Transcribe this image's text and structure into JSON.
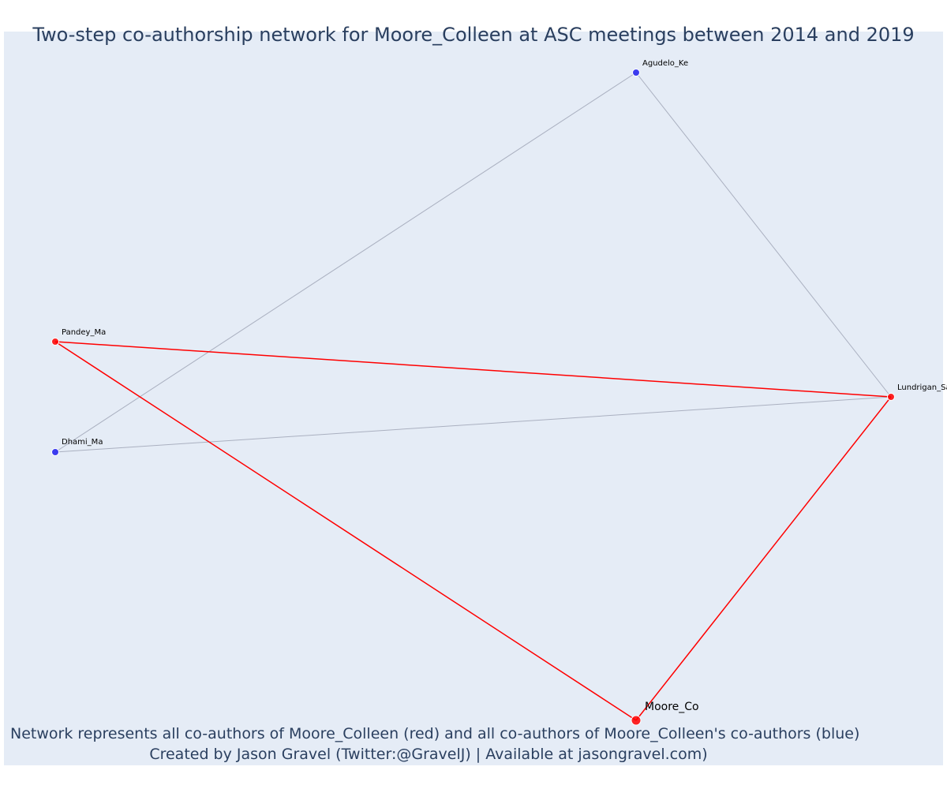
{
  "title": "Two-step co-authorship network for Moore_Colleen at ASC meetings between 2014 and 2019",
  "footnote": {
    "line1": "Network represents all co-authors of Moore_Colleen (red) and all co-authors of Moore_Colleen's co-authors (blue)",
    "line2": "Created by Jason Gravel (Twitter:@GravelJ) | Available at jasongravel.com)"
  },
  "colors": {
    "plot_background": "#e5ecf6",
    "coauthor_red": "#ff0000",
    "second_step_blue": "#3333ee",
    "indirect_edge": "#aab0c0",
    "title_text": "#2a3f5f"
  },
  "nodes": [
    {
      "id": "Moore_Co",
      "label": "Moore_Co",
      "group": "focal"
    },
    {
      "id": "Lundrigan_Sa",
      "label": "Lundrigan_Sa",
      "group": "coauthor"
    },
    {
      "id": "Pandey_Ma",
      "label": "Pandey_Ma",
      "group": "coauthor"
    },
    {
      "id": "Agudelo_Ke",
      "label": "Agudelo_Ke",
      "group": "second_step"
    },
    {
      "id": "Dhami_Ma",
      "label": "Dhami_Ma",
      "group": "second_step"
    }
  ],
  "edges": [
    {
      "source": "Pandey_Ma",
      "target": "Lundrigan_Sa",
      "type": "direct"
    },
    {
      "source": "Pandey_Ma",
      "target": "Moore_Co",
      "type": "direct"
    },
    {
      "source": "Lundrigan_Sa",
      "target": "Moore_Co",
      "type": "direct"
    },
    {
      "source": "Agudelo_Ke",
      "target": "Lundrigan_Sa",
      "type": "indirect"
    },
    {
      "source": "Agudelo_Ke",
      "target": "Dhami_Ma",
      "type": "indirect"
    },
    {
      "source": "Dhami_Ma",
      "target": "Lundrigan_Sa",
      "type": "indirect"
    }
  ]
}
